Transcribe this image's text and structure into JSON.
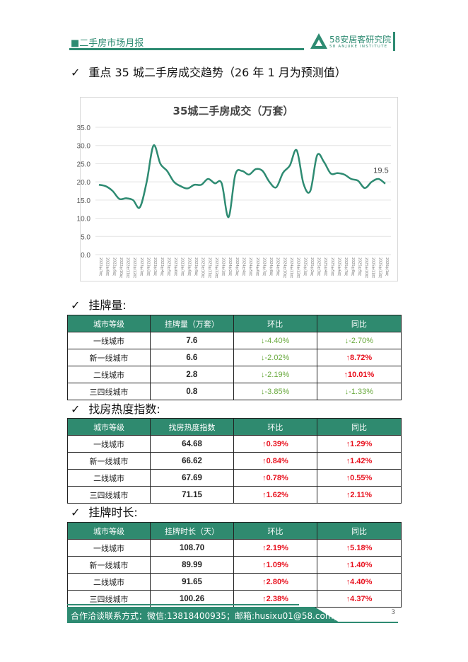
{
  "header": {
    "title": "■二手房市场月报",
    "logo_cn": "58安居客研究院",
    "logo_en": "58 ANJUKE INSTITUTE"
  },
  "section1": {
    "check": "✓",
    "title": "重点 35 城二手房成交趋势（26 年 1 月为预测值）"
  },
  "chart_data": {
    "type": "line",
    "title": "35城二手房成交（万套）",
    "ylim": [
      0,
      35
    ],
    "yticks": [
      "0.0",
      "5.0",
      "10.0",
      "15.0",
      "20.0",
      "25.0",
      "30.0",
      "35.0"
    ],
    "grid": true,
    "color": "#2e8b72",
    "categories": [
      "2022年7月",
      "2022年8月",
      "2022年9月",
      "2022年10月",
      "2022年11月",
      "2022年12月",
      "2023年1月",
      "2023年2月",
      "2023年3月",
      "2023年4月",
      "2023年5月",
      "2023年6月",
      "2023年7月",
      "2023年8月",
      "2023年9月",
      "2023年10月",
      "2023年11月",
      "2023年12月",
      "2024年1月",
      "2024年2月",
      "2024年3月",
      "2024年4月",
      "2024年5月",
      "2024年6月",
      "2024年7月",
      "2024年8月",
      "2024年9月",
      "2024年10月",
      "2024年11月",
      "2024年12月",
      "2025年1月",
      "2025年2月",
      "2025年3月",
      "2025年4月",
      "2025年5月",
      "2025年6月",
      "2025年7月",
      "2025年8月",
      "2025年9月",
      "2025年10月",
      "2025年11月",
      "2025年12月",
      "2026年1月"
    ],
    "values": [
      19.2,
      18.8,
      17.5,
      15.3,
      15.5,
      15.0,
      13.0,
      20.0,
      30.0,
      25.0,
      23.0,
      20.0,
      18.8,
      18.2,
      19.2,
      19.2,
      20.8,
      19.6,
      19.6,
      10.3,
      22.0,
      23.0,
      22.0,
      23.5,
      23.0,
      20.0,
      18.5,
      22.5,
      24.5,
      28.7,
      19.5,
      17.5,
      27.3,
      25.5,
      22.3,
      22.4,
      22.0,
      20.8,
      20.3,
      18.3,
      20.0,
      20.8,
      19.5
    ],
    "data_label": "19.5"
  },
  "section2": {
    "check": "✓",
    "title": "挂牌量:"
  },
  "table1": {
    "headers": [
      "城市等级",
      "挂牌量（万套）",
      "环比",
      "同比"
    ],
    "rows": [
      [
        "一线城市",
        "7.6",
        "↓-4.40%",
        "↓-2.70%"
      ],
      [
        "新一线城市",
        "6.6",
        "↓-2.02%",
        "↑8.72%"
      ],
      [
        "二线城市",
        "2.8",
        "↓-2.19%",
        "↑10.01%"
      ],
      [
        "三四线城市",
        "0.8",
        "↓-3.85%",
        "↓-1.33%"
      ]
    ]
  },
  "section3": {
    "check": "✓",
    "title": "找房热度指数:"
  },
  "table2": {
    "headers": [
      "城市等级",
      "找房热度指数",
      "环比",
      "同比"
    ],
    "rows": [
      [
        "一线城市",
        "64.68",
        "↑0.39%",
        "↑1.29%"
      ],
      [
        "新一线城市",
        "66.62",
        "↑0.84%",
        "↑1.42%"
      ],
      [
        "二线城市",
        "67.69",
        "↑0.78%",
        "↑0.55%"
      ],
      [
        "三四线城市",
        "71.15",
        "↑1.62%",
        "↑2.11%"
      ]
    ]
  },
  "section4": {
    "check": "✓",
    "title": "挂牌时长:"
  },
  "table3": {
    "headers": [
      "城市等级",
      "挂牌时长（天）",
      "环比",
      "同比"
    ],
    "rows": [
      [
        "一线城市",
        "108.70",
        "↑2.19%",
        "↑5.18%"
      ],
      [
        "新一线城市",
        "89.99",
        "↑1.09%",
        "↑1.40%"
      ],
      [
        "二线城市",
        "91.65",
        "↑2.80%",
        "↑4.40%"
      ],
      [
        "三四线城市",
        "100.26",
        "↑2.38%",
        "↑4.37%"
      ]
    ]
  },
  "colors": {
    "brand": "#2e8b72",
    "up": "#e8101d",
    "down": "#6aaa3f"
  },
  "footer": {
    "contact": "合作洽谈联系方式：微信:13818400935；邮箱:husixu01@58.com；",
    "page": "3"
  }
}
